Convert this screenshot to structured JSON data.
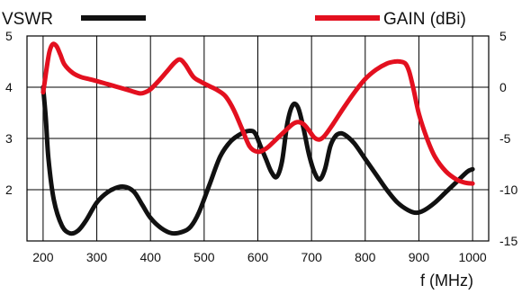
{
  "chart_data": {
    "type": "line",
    "xlabel": "f (MHz)",
    "x_ticks": [
      200,
      300,
      400,
      500,
      600,
      700,
      800,
      900,
      1000
    ],
    "xlim": [
      170,
      1030
    ],
    "grid": true,
    "left_axis": {
      "label": "VSWR",
      "ylim": [
        1,
        5
      ],
      "ticks": [
        2,
        3,
        4,
        5
      ]
    },
    "right_axis": {
      "label": "GAIN (dBi)",
      "ylim": [
        -15,
        5
      ],
      "ticks": [
        -15,
        -10,
        -5,
        0,
        5
      ]
    },
    "series": [
      {
        "name": "VSWR",
        "axis": "left",
        "color": "#111111",
        "x": [
          200,
          205,
          210,
          220,
          235,
          250,
          265,
          280,
          300,
          320,
          340,
          355,
          370,
          385,
          400,
          420,
          440,
          460,
          475,
          490,
          510,
          530,
          550,
          570,
          585,
          595,
          605,
          615,
          625,
          635,
          645,
          655,
          665,
          675,
          685,
          695,
          705,
          715,
          725,
          735,
          745,
          755,
          765,
          780,
          800,
          820,
          840,
          860,
          880,
          895,
          910,
          930,
          950,
          970,
          990,
          1000
        ],
        "y": [
          4.0,
          3.4,
          2.6,
          1.8,
          1.3,
          1.15,
          1.2,
          1.4,
          1.75,
          1.95,
          2.05,
          2.05,
          1.95,
          1.7,
          1.45,
          1.25,
          1.15,
          1.18,
          1.28,
          1.55,
          2.1,
          2.65,
          2.95,
          3.1,
          3.15,
          3.1,
          2.85,
          2.6,
          2.35,
          2.25,
          2.55,
          3.3,
          3.65,
          3.6,
          3.2,
          2.7,
          2.35,
          2.2,
          2.4,
          2.85,
          3.05,
          3.1,
          3.05,
          2.9,
          2.6,
          2.3,
          2.0,
          1.75,
          1.6,
          1.55,
          1.6,
          1.75,
          1.95,
          2.15,
          2.35,
          2.4
        ]
      },
      {
        "name": "GAIN (dBi)",
        "axis": "right",
        "color": "#e3101f",
        "x": [
          200,
          203,
          207,
          212,
          218,
          225,
          232,
          240,
          255,
          270,
          285,
          300,
          320,
          340,
          360,
          380,
          390,
          400,
          415,
          430,
          445,
          455,
          465,
          480,
          495,
          510,
          525,
          540,
          555,
          570,
          585,
          600,
          615,
          630,
          650,
          665,
          675,
          685,
          695,
          705,
          715,
          725,
          740,
          760,
          780,
          800,
          820,
          840,
          855,
          865,
          875,
          882,
          890,
          900,
          915,
          930,
          950,
          970,
          985,
          1000
        ],
        "y": [
          -0.5,
          0.5,
          2.0,
          3.5,
          4.2,
          4.0,
          3.2,
          2.2,
          1.4,
          1.0,
          0.8,
          0.6,
          0.3,
          0.0,
          -0.3,
          -0.6,
          -0.5,
          -0.2,
          0.6,
          1.5,
          2.4,
          2.7,
          2.2,
          1.0,
          0.5,
          0.1,
          -0.3,
          -0.9,
          -2.2,
          -4.0,
          -5.8,
          -6.3,
          -6.0,
          -5.3,
          -4.3,
          -3.6,
          -3.4,
          -3.6,
          -4.2,
          -4.9,
          -5.1,
          -4.7,
          -3.6,
          -2.0,
          -0.5,
          0.8,
          1.7,
          2.3,
          2.5,
          2.5,
          2.3,
          1.5,
          -0.2,
          -2.6,
          -5.0,
          -6.8,
          -8.2,
          -9.0,
          -9.3,
          -9.4
        ]
      }
    ]
  }
}
